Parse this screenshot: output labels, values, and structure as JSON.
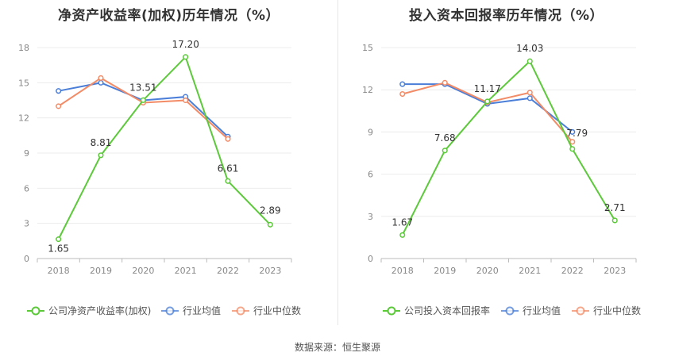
{
  "footer": {
    "source": "数据来源：恒生聚源"
  },
  "chart_data": [
    {
      "type": "line",
      "title": "净资产收益率(加权)历年情况（%）",
      "categories": [
        "2018",
        "2019",
        "2020",
        "2021",
        "2022",
        "2023"
      ],
      "ylim": [
        0,
        18
      ],
      "yticks": [
        0,
        3,
        6,
        9,
        12,
        15,
        18
      ],
      "grid": true,
      "legend_position": "bottom",
      "series": [
        {
          "name": "公司净资产收益率(加权)",
          "color": "#5cc93a",
          "values": [
            1.65,
            8.81,
            13.51,
            17.2,
            6.61,
            2.89
          ],
          "labels": [
            "1.65",
            "8.81",
            "13.51",
            "17.20",
            "6.61",
            "2.89"
          ]
        },
        {
          "name": "行业均值",
          "color": "#4a7ed8",
          "values": [
            14.3,
            15.0,
            13.5,
            13.8,
            10.4,
            null
          ]
        },
        {
          "name": "行业中位数",
          "color": "#f28b66",
          "values": [
            13.0,
            15.4,
            13.3,
            13.5,
            10.2,
            null
          ]
        }
      ]
    },
    {
      "type": "line",
      "title": "投入资本回报率历年情况（%）",
      "categories": [
        "2018",
        "2019",
        "2020",
        "2021",
        "2022",
        "2023"
      ],
      "ylim": [
        0,
        15
      ],
      "yticks": [
        0,
        3,
        6,
        9,
        12,
        15
      ],
      "grid": true,
      "legend_position": "bottom",
      "series": [
        {
          "name": "公司投入资本回报率",
          "color": "#5cc93a",
          "values": [
            1.67,
            7.68,
            11.17,
            14.03,
            7.79,
            2.71
          ],
          "labels": [
            "1.67",
            "7.68",
            "11.17",
            "14.03",
            "7.79",
            "2.71"
          ]
        },
        {
          "name": "行业均值",
          "color": "#4a7ed8",
          "values": [
            12.4,
            12.4,
            11.0,
            11.4,
            9.0,
            null
          ]
        },
        {
          "name": "行业中位数",
          "color": "#f28b66",
          "values": [
            11.7,
            12.5,
            11.1,
            11.8,
            8.3,
            null
          ]
        }
      ]
    }
  ]
}
